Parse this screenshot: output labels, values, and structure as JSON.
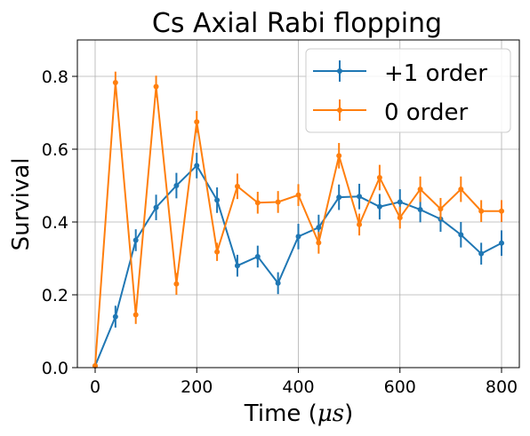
{
  "chart_data": {
    "type": "line",
    "title": "Cs Axial Rabi flopping",
    "xlabel": "Time (",
    "xlabel_unit": "μs",
    "xlabel_close": ")",
    "ylabel": "Survival",
    "xlim": [
      -35,
      835
    ],
    "ylim": [
      0,
      0.9
    ],
    "xticks": [
      0,
      200,
      400,
      600,
      800
    ],
    "yticks": [
      0.0,
      0.2,
      0.4,
      0.6,
      0.8
    ],
    "xtick_labels": [
      "0",
      "200",
      "400",
      "600",
      "800"
    ],
    "ytick_labels": [
      "0.0",
      "0.2",
      "0.4",
      "0.6",
      "0.8"
    ],
    "grid": true,
    "legend_position": "top-right",
    "series": [
      {
        "name": "+1 order",
        "color": "#1f77b4",
        "x": [
          0,
          40,
          80,
          120,
          160,
          200,
          240,
          280,
          320,
          360,
          400,
          440,
          480,
          520,
          560,
          600,
          640,
          680,
          720,
          760,
          800
        ],
        "y": [
          0.005,
          0.14,
          0.35,
          0.44,
          0.5,
          0.555,
          0.46,
          0.28,
          0.305,
          0.232,
          0.36,
          0.385,
          0.468,
          0.47,
          0.442,
          0.455,
          0.434,
          0.408,
          0.365,
          0.313,
          0.342
        ],
        "err": [
          0.005,
          0.03,
          0.03,
          0.035,
          0.035,
          0.035,
          0.035,
          0.03,
          0.03,
          0.03,
          0.035,
          0.035,
          0.035,
          0.035,
          0.035,
          0.035,
          0.035,
          0.035,
          0.035,
          0.03,
          0.035
        ]
      },
      {
        "name": "0 order",
        "color": "#ff7f0e",
        "x": [
          0,
          40,
          80,
          120,
          160,
          200,
          240,
          280,
          320,
          360,
          400,
          440,
          480,
          520,
          560,
          600,
          640,
          680,
          720,
          760,
          800
        ],
        "y": [
          0.005,
          0.783,
          0.145,
          0.772,
          0.23,
          0.675,
          0.318,
          0.498,
          0.453,
          0.455,
          0.474,
          0.343,
          0.582,
          0.393,
          0.522,
          0.412,
          0.49,
          0.436,
          0.49,
          0.43,
          0.43
        ],
        "err": [
          0.005,
          0.03,
          0.025,
          0.03,
          0.03,
          0.03,
          0.025,
          0.035,
          0.03,
          0.03,
          0.03,
          0.03,
          0.035,
          0.03,
          0.035,
          0.03,
          0.035,
          0.03,
          0.035,
          0.03,
          0.03
        ]
      }
    ]
  }
}
